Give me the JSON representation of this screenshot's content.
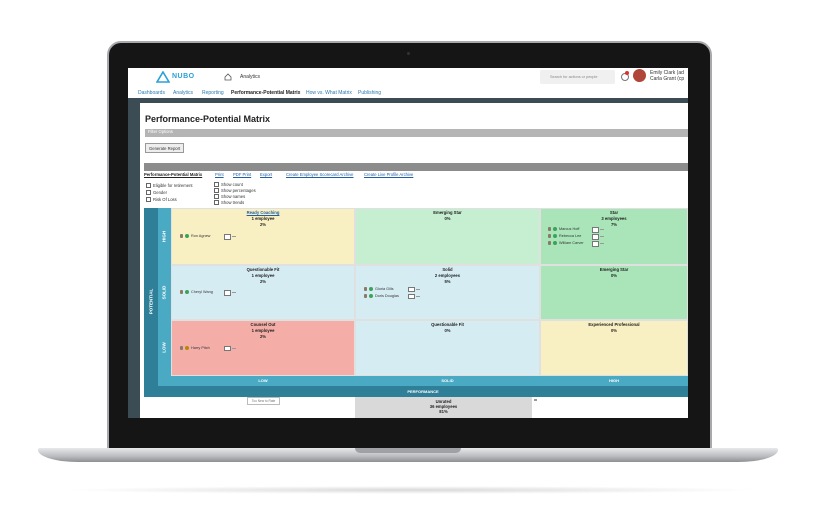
{
  "header": {
    "logo": "NUBO",
    "nav": "Analytics",
    "search": "Search for actions or people",
    "user_name": "Emily Clark (ad",
    "user_role": "Carla Grant (cp"
  },
  "tabs": [
    "Dashboards",
    "Analytics",
    "Reporting",
    "Performance-Potential Matrix",
    "How vs. What Matrix",
    "Publishing"
  ],
  "page": {
    "title": "Performance-Potential Matrix",
    "filter": "Filter Options",
    "button": "Generate Report"
  },
  "toolbar": [
    "Performance-Potential Matrix",
    "Print",
    "PDF Print",
    "Export",
    "Create Employee Scorecard Archive",
    "Create Live Profile Archive"
  ],
  "options": {
    "left": [
      "Eligible for retirement",
      "Gender",
      "Risk Of Loss"
    ],
    "right": [
      "Show count",
      "Show percentages",
      "Show names",
      "Show trends"
    ]
  },
  "matrix": {
    "y_axis": "POTENTIAL",
    "rows": [
      "HIGH",
      "SOLID",
      "LOW"
    ],
    "x_axis": "PERFORMANCE",
    "columns": [
      "LOW",
      "SOLID",
      "HIGH"
    ],
    "cells": [
      [
        {
          "title": "Ready Coaching",
          "count": "1 employee",
          "percent": "2%",
          "employees": [
            "Ron Agnew"
          ]
        },
        {
          "title": "Emerging Star",
          "percent": "0%",
          "employees": []
        },
        {
          "title": "Star",
          "count": "3 employees",
          "percent": "7%",
          "employees": [
            "Marcus Hoff",
            "Rebecca Lee",
            "William Carver"
          ]
        }
      ],
      [
        {
          "title": "Questionable Fit",
          "count": "1 employee",
          "percent": "2%",
          "employees": [
            "Cheryl Wang"
          ]
        },
        {
          "title": "Solid",
          "count": "2 employees",
          "percent": "5%",
          "employees": [
            "Gloria Gills",
            "Doris Douglas"
          ]
        },
        {
          "title": "Emerging Star",
          "percent": "0%",
          "employees": []
        }
      ],
      [
        {
          "title": "Counsel Out",
          "count": "1 employee",
          "percent": "2%",
          "employees": [
            "Harry Pitch"
          ]
        },
        {
          "title": "Questionable Fit",
          "percent": "0%",
          "employees": []
        },
        {
          "title": "Experienced Professional",
          "percent": "0%",
          "employees": []
        }
      ]
    ]
  },
  "footer": {
    "too_new": "Too New to Rate",
    "unrated": "Unrated",
    "unrated_count": "36 employees",
    "unrated_percent": "81%"
  }
}
